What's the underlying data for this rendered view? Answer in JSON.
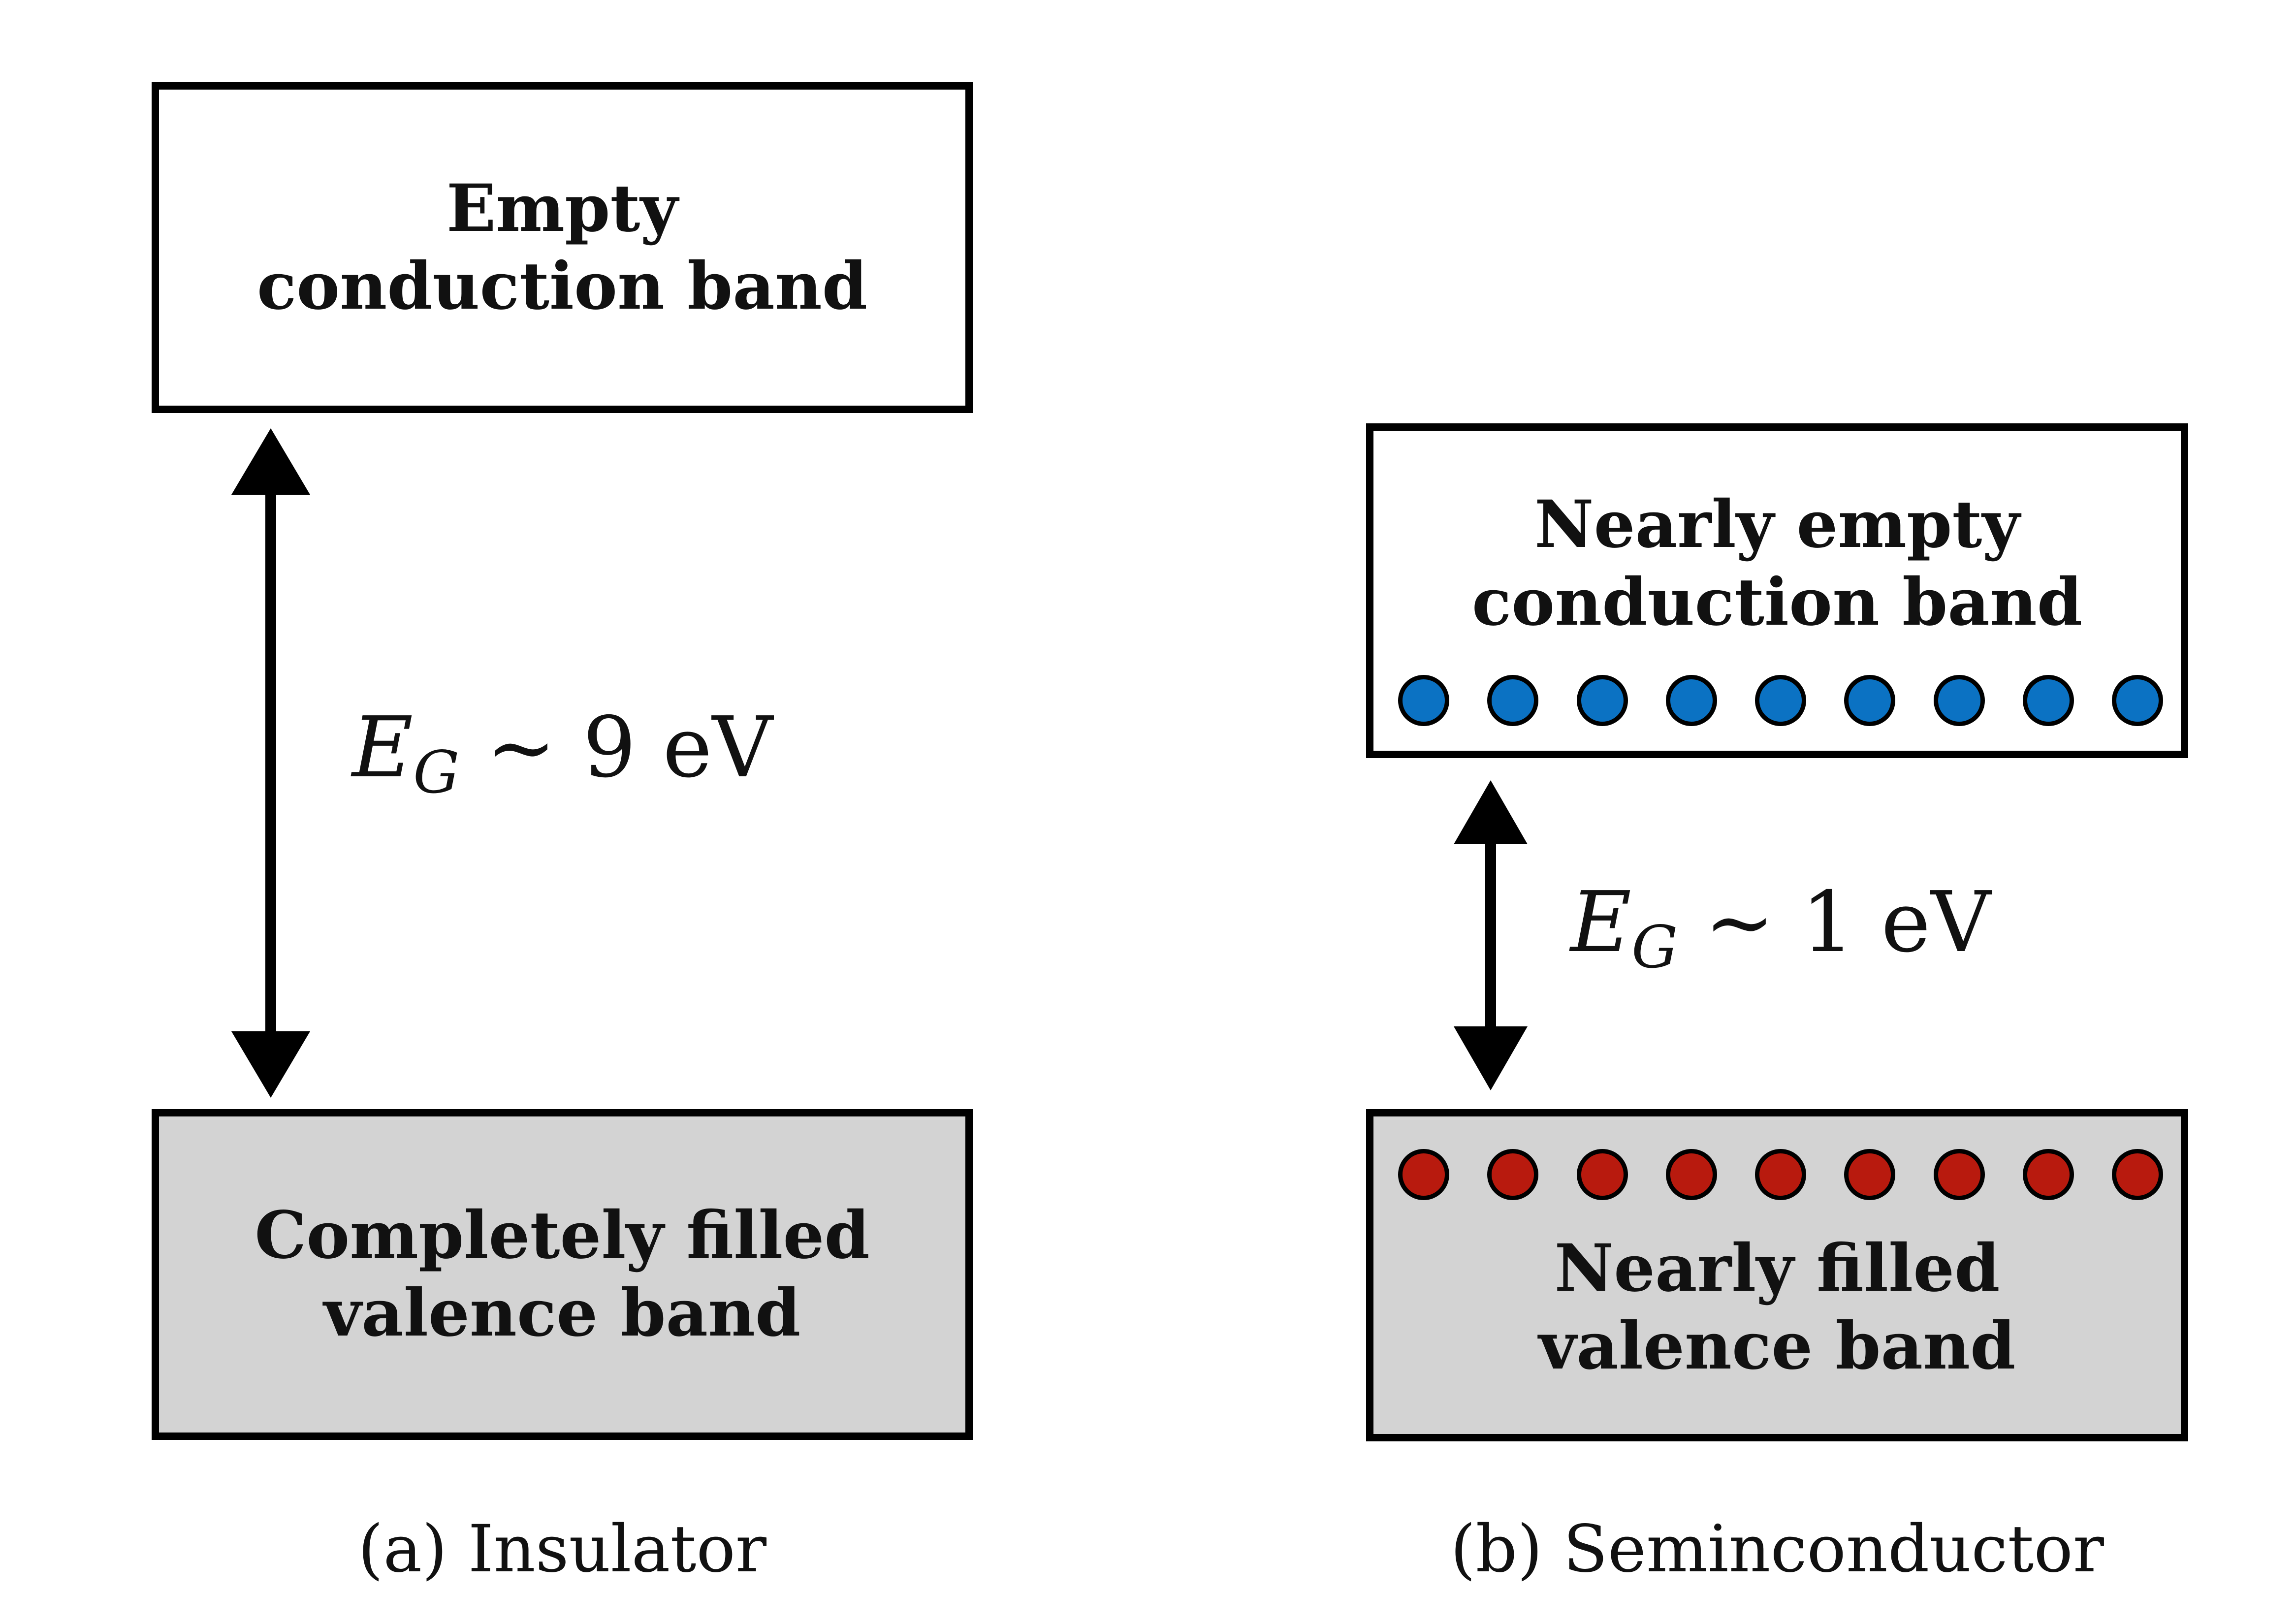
{
  "colors": {
    "outline": "#000000",
    "filled_band": "#d3d3d3",
    "empty_band": "#ffffff",
    "electron": "#0b72c3",
    "hole": "#b81a0e"
  },
  "insulator": {
    "conduction_band": "Empty\nconduction band",
    "valence_band": "Completely filled\nvalence band",
    "gap": {
      "symbol": "E",
      "subscript": "G",
      "relation": "∼",
      "value": "9",
      "unit": "eV"
    },
    "caption": "(a) Insulator"
  },
  "semiconductor": {
    "conduction_band": "Nearly empty\nconduction band",
    "valence_band": "Nearly filled\nvalence band",
    "gap": {
      "symbol": "E",
      "subscript": "G",
      "relation": "∼",
      "value": "1",
      "unit": "eV"
    },
    "caption": "(b) Seminconductor",
    "electron_count": 9,
    "hole_count": 9
  }
}
